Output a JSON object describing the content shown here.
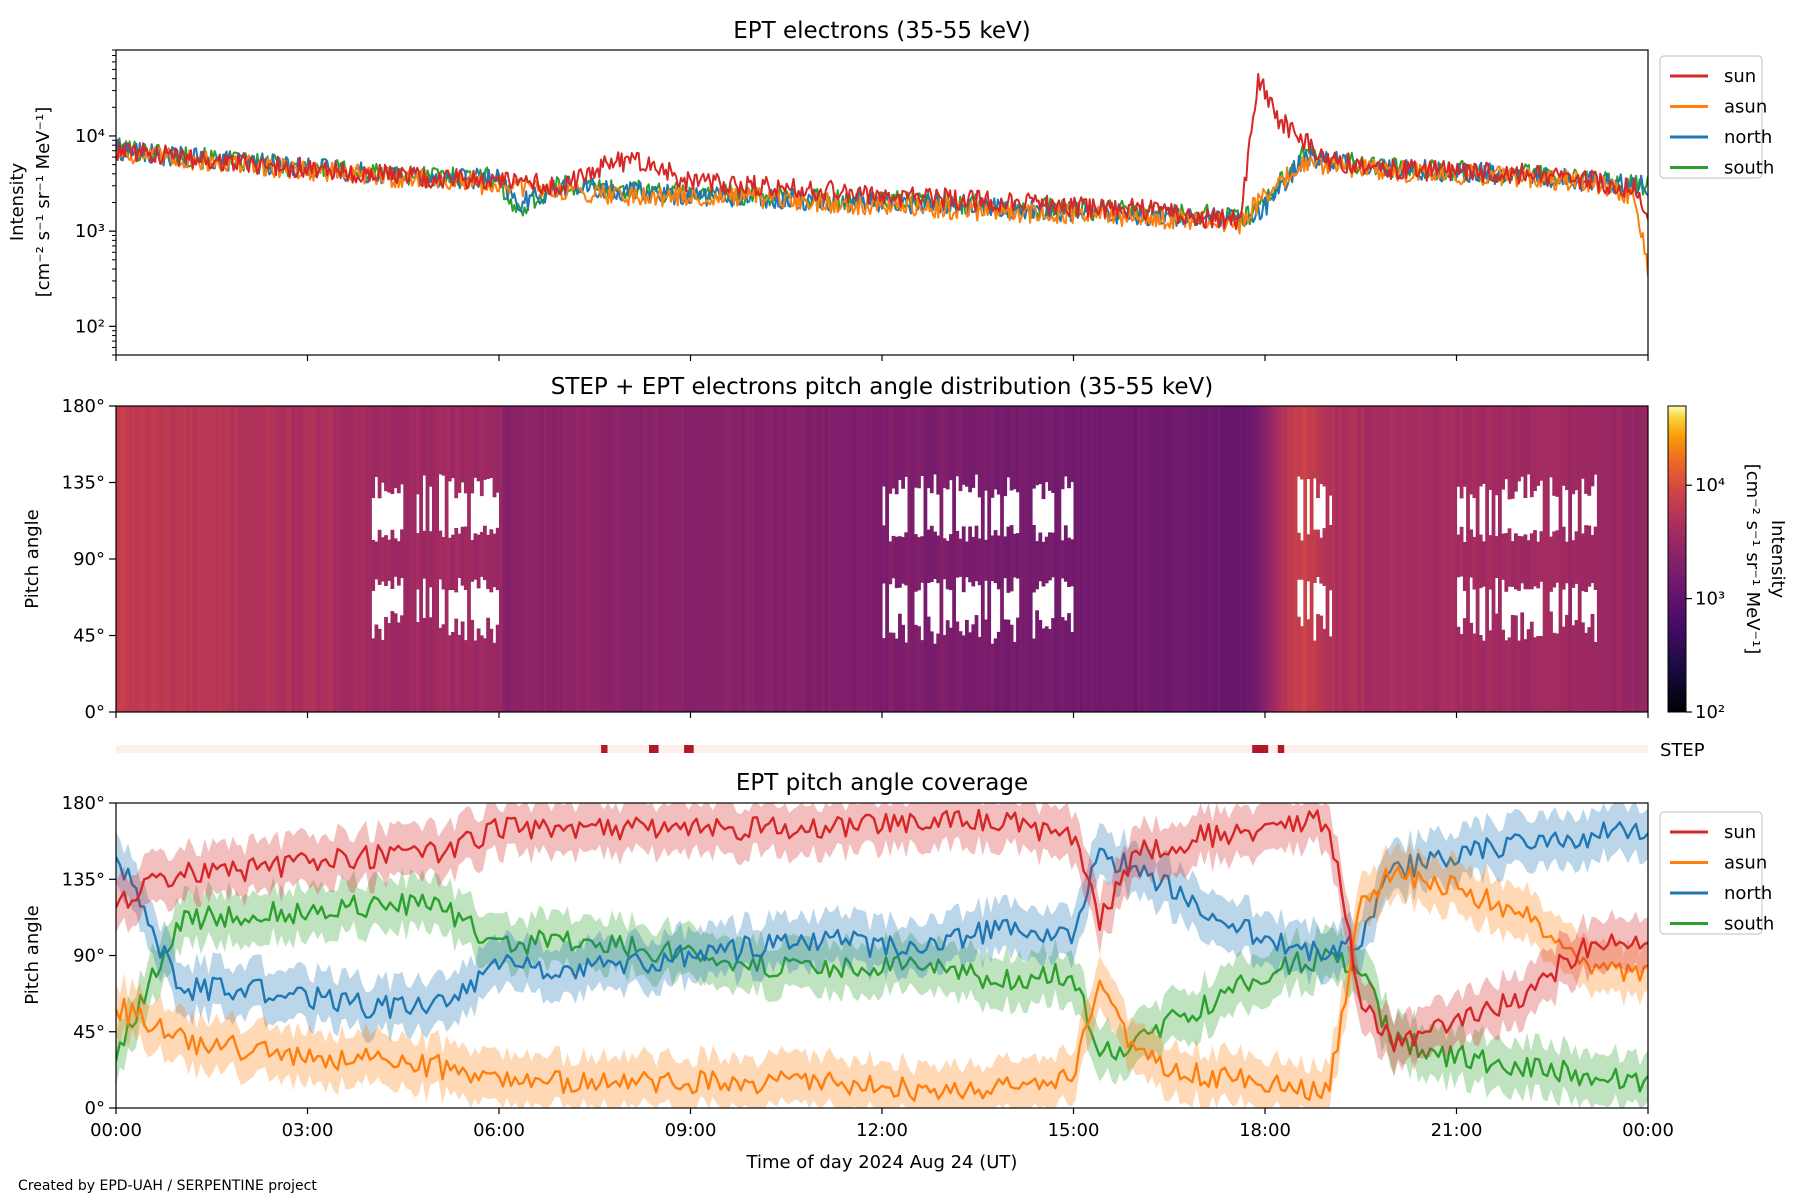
{
  "credit": "Created by EPD-UAH / SERPENTINE project",
  "colors": {
    "sun": "#d62728",
    "asun": "#ff7f0e",
    "north": "#1f77b4",
    "south": "#2ca02c",
    "step_bar": "#b2182b",
    "step_track": "#fdf0ea"
  },
  "chart_data": [
    {
      "type": "line",
      "title": "EPT electrons (35-55 keV)",
      "ylabel_line1": "Intensity",
      "ylabel_line2": "[cm⁻² s⁻¹ sr⁻¹ MeV⁻¹]",
      "y_scale": "log",
      "ylim": [
        50,
        80000
      ],
      "y_ticks": [
        {
          "value": 100,
          "label": "10²"
        },
        {
          "value": 1000,
          "label": "10³"
        },
        {
          "value": 10000,
          "label": "10⁴"
        }
      ],
      "x_range_hours": [
        0,
        24
      ],
      "legend_position": "right, outside",
      "series": [
        {
          "name": "sun",
          "color": "#d62728",
          "x": [
            0,
            1,
            2,
            3,
            4,
            5,
            6,
            7,
            7.8,
            8.4,
            9,
            10,
            11,
            12,
            13,
            14,
            15,
            16,
            17,
            17.6,
            17.9,
            18.2,
            18.6,
            19,
            20,
            21,
            22,
            23,
            23.8,
            24
          ],
          "y": [
            7000,
            6000,
            5200,
            4600,
            4000,
            3600,
            3400,
            3000,
            5500,
            5000,
            3200,
            3000,
            2700,
            2400,
            2200,
            2000,
            1800,
            1700,
            1400,
            1300,
            40000,
            15000,
            9000,
            5500,
            4500,
            4200,
            4000,
            3500,
            2800,
            1500
          ]
        },
        {
          "name": "asun",
          "color": "#ff7f0e",
          "x": [
            0,
            1,
            2,
            3,
            4,
            5,
            6,
            7,
            8,
            9,
            10,
            11,
            12,
            13,
            14,
            15,
            16,
            17,
            17.6,
            18,
            18.6,
            19,
            20,
            21,
            22,
            23,
            23.8,
            24
          ],
          "y": [
            6800,
            5700,
            5000,
            4400,
            3800,
            3400,
            3000,
            2700,
            2400,
            2300,
            2200,
            2000,
            1900,
            1700,
            1600,
            1500,
            1400,
            1250,
            1150,
            2500,
            5000,
            5000,
            4200,
            4000,
            3700,
            3300,
            2400,
            400
          ]
        },
        {
          "name": "north",
          "color": "#1f77b4",
          "x": [
            0,
            1,
            2,
            3,
            4,
            5,
            6,
            6.3,
            7,
            8,
            9,
            10,
            11,
            12,
            13,
            14,
            15,
            16,
            17,
            17.8,
            18.2,
            18.6,
            19,
            20,
            21,
            22,
            23,
            24
          ],
          "y": [
            7200,
            6000,
            5300,
            4700,
            4100,
            3700,
            3500,
            1900,
            3000,
            2600,
            2400,
            2300,
            2100,
            2000,
            1900,
            1700,
            1600,
            1500,
            1400,
            1300,
            2500,
            6000,
            5500,
            4500,
            4200,
            3900,
            3400,
            3000
          ]
        },
        {
          "name": "south",
          "color": "#2ca02c",
          "x": [
            0,
            1,
            2,
            3,
            4,
            5,
            6,
            6.2,
            7,
            8,
            9,
            10,
            11,
            12,
            13,
            14,
            15,
            16,
            17,
            17.8,
            18.2,
            18.6,
            19,
            20,
            21,
            22,
            23,
            24
          ],
          "y": [
            7500,
            6200,
            5300,
            4700,
            4100,
            3800,
            3600,
            1600,
            3100,
            2700,
            2500,
            2400,
            2200,
            2100,
            2000,
            1800,
            1700,
            1600,
            1500,
            1400,
            3000,
            6500,
            5500,
            4600,
            4300,
            4000,
            3500,
            3000
          ]
        }
      ]
    },
    {
      "type": "heatmap",
      "title": "STEP + EPT electrons pitch angle distribution (35-55 keV)",
      "ylabel": "Pitch angle",
      "ylim": [
        0,
        180
      ],
      "y_ticks": [
        "0°",
        "45°",
        "90°",
        "135°",
        "180°"
      ],
      "x_range_hours": [
        0,
        24
      ],
      "colorscale": "inferno",
      "colorbar": {
        "label_line1": "Intensity",
        "label_line2": "[cm⁻² s⁻¹ sr⁻¹ MeV⁻¹]",
        "range": [
          100,
          50000
        ],
        "scale": "log",
        "ticks": [
          {
            "value": 100,
            "label": "10²"
          },
          {
            "value": 1000,
            "label": "10³"
          },
          {
            "value": 10000,
            "label": "10⁴"
          }
        ]
      },
      "intensity_profile": {
        "x": [
          0,
          1,
          2,
          3,
          4,
          5,
          6,
          6.1,
          7,
          8,
          9,
          10,
          11,
          12,
          13,
          14,
          15,
          16,
          17,
          17.8,
          18.3,
          18.6,
          19,
          20,
          21,
          22,
          23,
          24
        ],
        "y": [
          7000,
          6000,
          5200,
          4600,
          4000,
          3600,
          3400,
          2200,
          2600,
          2400,
          2300,
          2200,
          2000,
          1900,
          1800,
          1600,
          1500,
          1400,
          1300,
          1200,
          6000,
          8000,
          5000,
          4300,
          4100,
          3900,
          3400,
          3000
        ]
      },
      "step_label": "STEP",
      "step_marks_hours": [
        [
          7.6,
          7.7
        ],
        [
          8.35,
          8.5
        ],
        [
          8.9,
          9.05
        ],
        [
          17.8,
          18.05
        ],
        [
          18.2,
          18.3
        ]
      ]
    },
    {
      "type": "line",
      "title": "EPT pitch angle coverage",
      "ylabel": "Pitch angle",
      "xlabel": "Time of day 2024 Aug 24 (UT)",
      "ylim": [
        0,
        180
      ],
      "y_ticks": [
        "0°",
        "45°",
        "90°",
        "135°",
        "180°"
      ],
      "x_ticks": [
        "00:00",
        "03:00",
        "06:00",
        "09:00",
        "12:00",
        "15:00",
        "18:00",
        "21:00",
        "00:00"
      ],
      "band_halfwidth_deg": 15,
      "legend_position": "right, outside",
      "series": [
        {
          "name": "sun",
          "color": "#d62728",
          "x": [
            0,
            1,
            2,
            3,
            4,
            5,
            6,
            7,
            8,
            9,
            10,
            11,
            12,
            13,
            14,
            15,
            15.4,
            16,
            17,
            18,
            19,
            19.5,
            20,
            21,
            22,
            23,
            24
          ],
          "y": [
            120,
            140,
            140,
            145,
            148,
            150,
            165,
            165,
            165,
            165,
            165,
            165,
            168,
            170,
            168,
            160,
            110,
            150,
            160,
            165,
            170,
            60,
            40,
            50,
            65,
            95,
            100
          ]
        },
        {
          "name": "asun",
          "color": "#ff7f0e",
          "x": [
            0,
            1,
            2,
            3,
            4,
            5,
            6,
            7,
            8,
            9,
            10,
            11,
            12,
            13,
            14,
            15,
            15.4,
            16,
            17,
            18,
            19,
            19.5,
            20,
            21,
            22,
            23,
            24
          ],
          "y": [
            60,
            40,
            35,
            30,
            28,
            25,
            15,
            15,
            15,
            15,
            15,
            15,
            12,
            10,
            12,
            20,
            70,
            30,
            20,
            15,
            10,
            120,
            140,
            130,
            115,
            85,
            80
          ]
        },
        {
          "name": "north",
          "color": "#1f77b4",
          "x": [
            0,
            1,
            2,
            3,
            4,
            5,
            6,
            7,
            8,
            9,
            10,
            11,
            12,
            13,
            14,
            15,
            15.4,
            16,
            17,
            18,
            19,
            19.5,
            20,
            21,
            22,
            23,
            24
          ],
          "y": [
            150,
            70,
            70,
            65,
            60,
            60,
            85,
            80,
            85,
            90,
            95,
            100,
            95,
            100,
            105,
            100,
            150,
            140,
            120,
            100,
            90,
            100,
            140,
            150,
            155,
            160,
            165
          ]
        },
        {
          "name": "south",
          "color": "#2ca02c",
          "x": [
            0,
            1,
            2,
            3,
            4,
            5,
            6,
            7,
            8,
            9,
            10,
            11,
            12,
            13,
            14,
            15,
            15.4,
            16,
            17,
            18,
            19,
            19.5,
            20,
            21,
            22,
            23,
            24
          ],
          "y": [
            30,
            110,
            115,
            115,
            120,
            120,
            95,
            100,
            95,
            90,
            85,
            80,
            85,
            80,
            75,
            80,
            30,
            40,
            60,
            80,
            90,
            80,
            40,
            30,
            25,
            20,
            15
          ]
        }
      ]
    }
  ]
}
